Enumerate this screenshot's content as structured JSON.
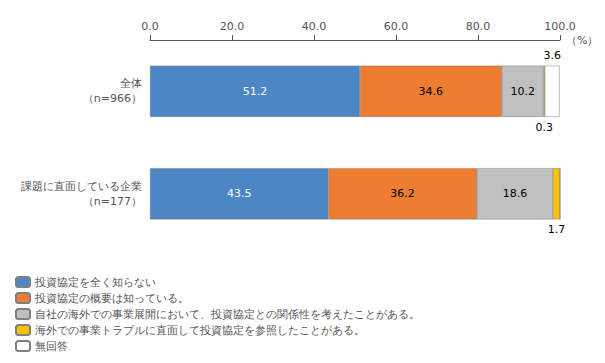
{
  "chart_data": {
    "type": "bar",
    "orientation": "horizontal",
    "stacked": true,
    "data_labels": true,
    "grid": false,
    "legend": "lower left",
    "x_label": "（%）",
    "categories": [
      "全体\n（n=966）",
      "課題に直面している企業\n（n=177）"
    ],
    "series": [
      {
        "name": "投資協定を全く知らない",
        "color": "#4D86C4",
        "values": [
          51.2,
          43.5
        ]
      },
      {
        "name": "投資協定の概要は知っている。",
        "color": "#ED7D31",
        "values": [
          34.6,
          36.2
        ]
      },
      {
        "name": "自社の海外での事業展開において、投資協定との関係性を考えたことがある。",
        "color": "#C0C0C0",
        "values": [
          10.2,
          18.6
        ]
      },
      {
        "name": "海外での事業トラブルに直面して投資協定を参照したことがある。",
        "color": "#FFC000",
        "values": [
          0.3,
          1.7
        ]
      },
      {
        "name": "無回答",
        "color": "#FFFFFF",
        "values": [
          3.6,
          0.0
        ]
      }
    ],
    "xlim": [
      0,
      100
    ],
    "xticks": [
      {
        "value": 0,
        "label": "0.0"
      },
      {
        "value": 20,
        "label": "20.0"
      },
      {
        "value": 40,
        "label": "40.0"
      },
      {
        "value": 60,
        "label": "60.0"
      },
      {
        "value": 80,
        "label": "80.0"
      },
      {
        "value": 100,
        "label": "100.0"
      }
    ]
  }
}
